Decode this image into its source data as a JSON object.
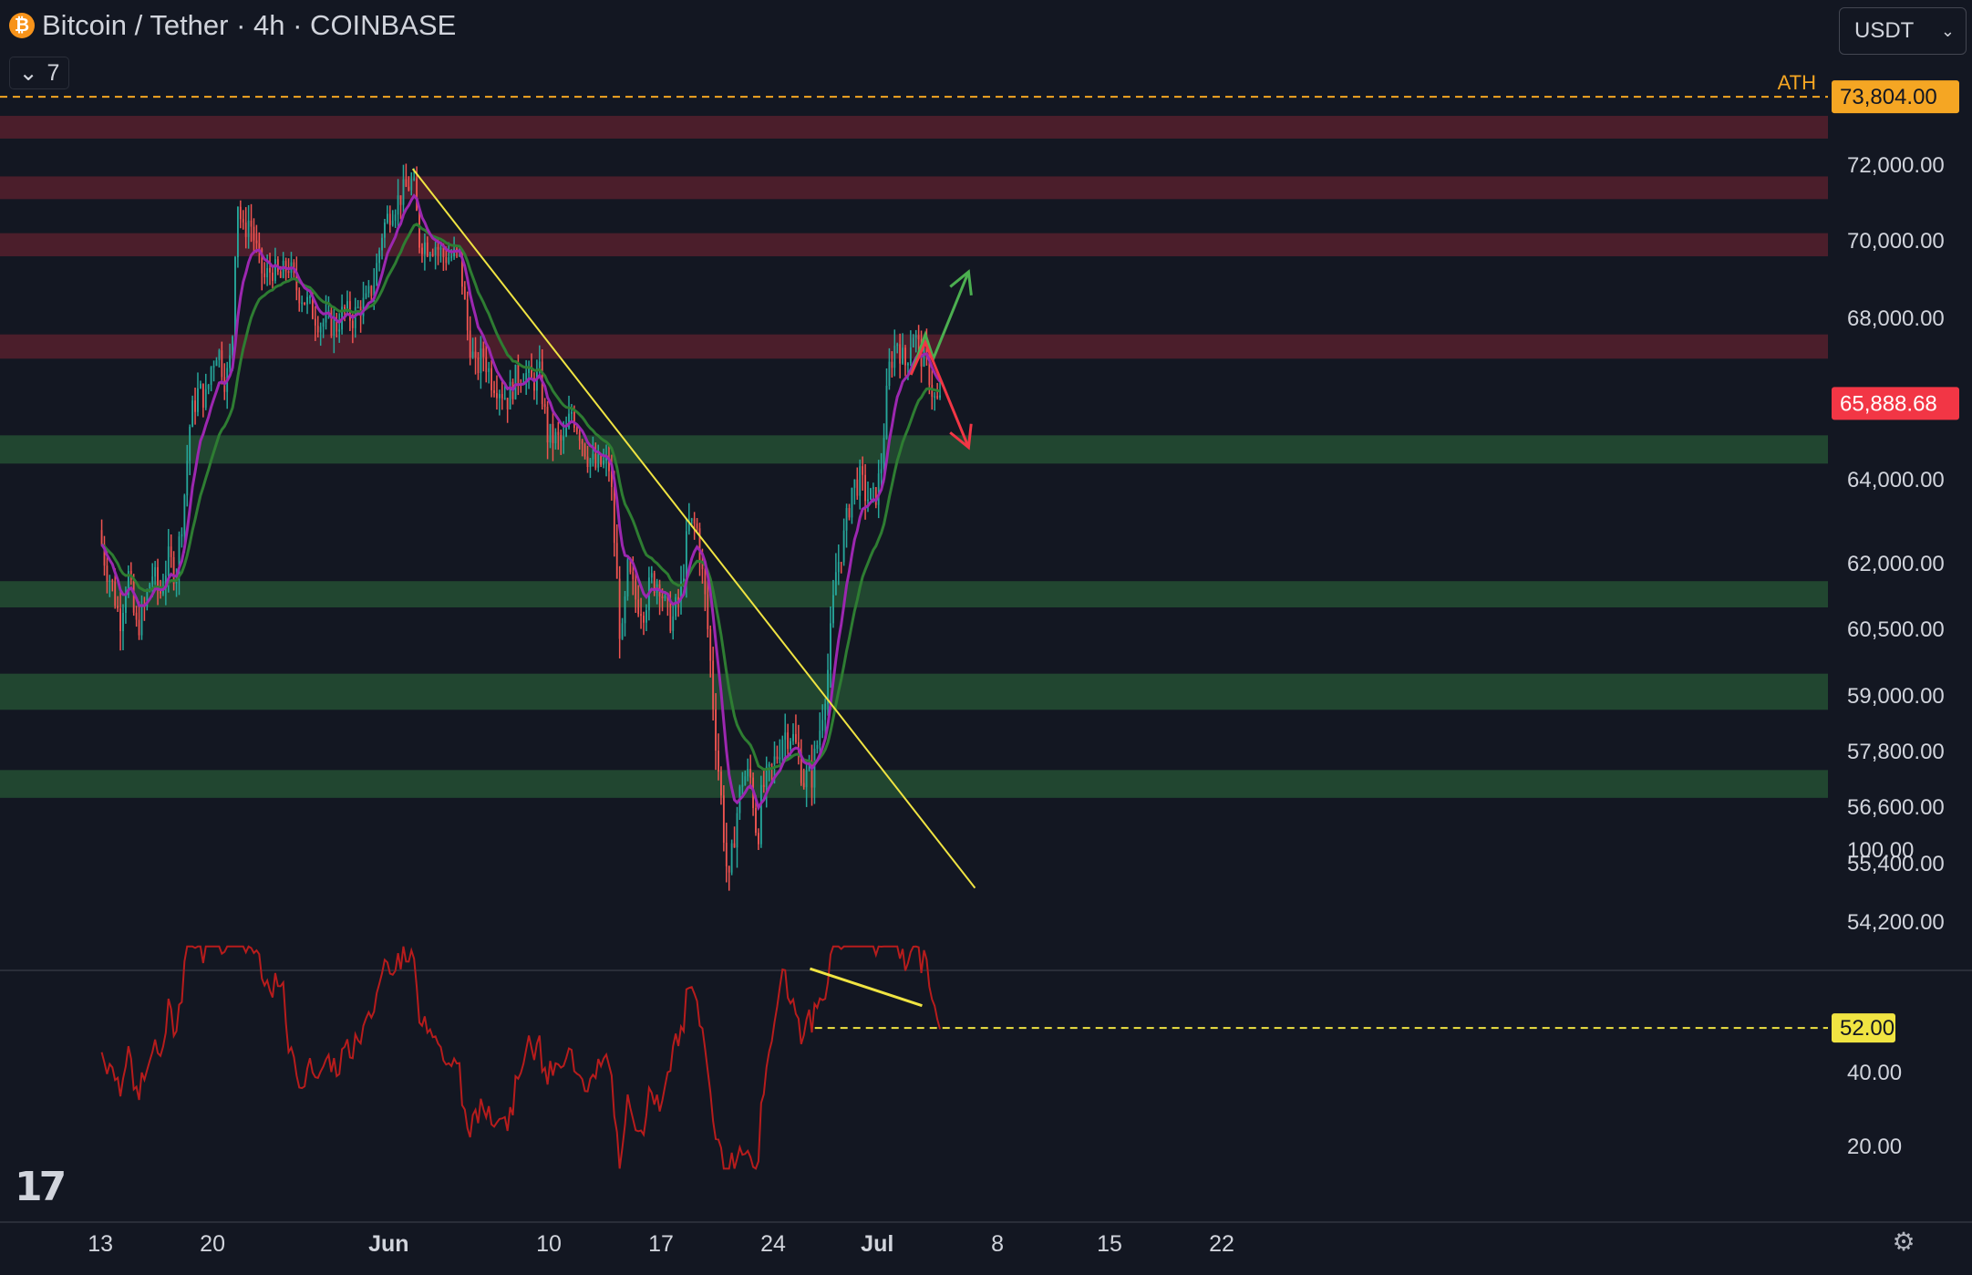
{
  "header": {
    "title": "Bitcoin / Tether · 4h · COINBASE",
    "icon": "bitcoin-icon",
    "icon_glyph": "₿",
    "indicators_count": "7"
  },
  "currency_select": {
    "value": "USDT"
  },
  "chart_data": {
    "type": "candlestick",
    "symbol": "BTCUSDT",
    "interval": "4h",
    "exchange": "COINBASE",
    "price_axis": {
      "ticks": [
        "72,000.00",
        "70,000.00",
        "68,000.00",
        "64,000.00",
        "62,000.00",
        "60,500.00",
        "59,000.00",
        "57,800.00",
        "56,600.00",
        "55,400.00",
        "54,200.00"
      ]
    },
    "time_axis": {
      "ticks": [
        "13",
        "20",
        "Jun",
        "10",
        "17",
        "24",
        "Jul",
        "8",
        "15",
        "22"
      ]
    },
    "price_path": [
      [
        0,
        62800
      ],
      [
        0.4,
        62000
      ],
      [
        0.9,
        61400
      ],
      [
        1.3,
        60700
      ],
      [
        1.8,
        61800
      ],
      [
        2.3,
        60500
      ],
      [
        2.8,
        60900
      ],
      [
        3.3,
        61800
      ],
      [
        3.8,
        61300
      ],
      [
        4.3,
        62100
      ],
      [
        4.8,
        61800
      ],
      [
        5.3,
        63500
      ],
      [
        5.7,
        65500
      ],
      [
        6.2,
        66200
      ],
      [
        6.7,
        66000
      ],
      [
        7.0,
        66800
      ],
      [
        7.4,
        67300
      ],
      [
        7.9,
        66400
      ],
      [
        8.3,
        67200
      ],
      [
        8.6,
        71200
      ],
      [
        9.0,
        70200
      ],
      [
        9.4,
        70600
      ],
      [
        9.9,
        69600
      ],
      [
        10.3,
        69000
      ],
      [
        10.8,
        69300
      ],
      [
        11.3,
        69000
      ],
      [
        11.8,
        69400
      ],
      [
        12.3,
        68800
      ],
      [
        12.8,
        68500
      ],
      [
        13.3,
        68200
      ],
      [
        13.8,
        67900
      ],
      [
        14.3,
        67900
      ],
      [
        14.8,
        67800
      ],
      [
        15.3,
        68200
      ],
      [
        15.8,
        68000
      ],
      [
        16.3,
        68300
      ],
      [
        16.7,
        68400
      ],
      [
        17.2,
        69000
      ],
      [
        17.7,
        70300
      ],
      [
        18.2,
        70800
      ],
      [
        18.7,
        71100
      ],
      [
        19.2,
        71400
      ],
      [
        19.6,
        71600
      ],
      [
        20.0,
        70000
      ],
      [
        20.5,
        69900
      ],
      [
        21.0,
        69900
      ],
      [
        21.5,
        69600
      ],
      [
        22.0,
        69600
      ],
      [
        22.5,
        69600
      ],
      [
        23.0,
        67700
      ],
      [
        23.5,
        66700
      ],
      [
        24.0,
        67100
      ],
      [
        24.5,
        66500
      ],
      [
        25.0,
        66300
      ],
      [
        25.5,
        66000
      ],
      [
        26.0,
        66500
      ],
      [
        26.5,
        66700
      ],
      [
        27.0,
        66400
      ],
      [
        27.5,
        66600
      ],
      [
        28.0,
        65100
      ],
      [
        28.5,
        65000
      ],
      [
        29.0,
        64900
      ],
      [
        29.5,
        65700
      ],
      [
        30.0,
        65200
      ],
      [
        30.5,
        64600
      ],
      [
        31.0,
        64300
      ],
      [
        31.4,
        64400
      ],
      [
        31.9,
        64300
      ],
      [
        32.3,
        61700
      ],
      [
        32.6,
        60000
      ],
      [
        33.0,
        61800
      ],
      [
        33.5,
        61200
      ],
      [
        34.0,
        61000
      ],
      [
        34.5,
        61600
      ],
      [
        35.0,
        61600
      ],
      [
        35.4,
        60900
      ],
      [
        35.8,
        60700
      ],
      [
        36.3,
        61300
      ],
      [
        36.8,
        62900
      ],
      [
        37.3,
        62900
      ],
      [
        37.8,
        61300
      ],
      [
        38.1,
        60100
      ],
      [
        38.4,
        58500
      ],
      [
        38.9,
        56500
      ],
      [
        39.3,
        54800
      ],
      [
        39.7,
        56200
      ],
      [
        40.2,
        57300
      ],
      [
        40.7,
        57200
      ],
      [
        41.1,
        55900
      ],
      [
        41.4,
        57000
      ],
      [
        41.8,
        57200
      ],
      [
        42.3,
        57700
      ],
      [
        42.7,
        58200
      ],
      [
        43.2,
        58200
      ],
      [
        43.6,
        57800
      ],
      [
        44.0,
        57200
      ],
      [
        44.5,
        57300
      ],
      [
        45.0,
        58300
      ],
      [
        45.5,
        59600
      ],
      [
        46.0,
        61800
      ],
      [
        46.5,
        62600
      ],
      [
        47.0,
        63800
      ],
      [
        47.5,
        64000
      ],
      [
        47.9,
        63600
      ],
      [
        48.4,
        63500
      ],
      [
        48.8,
        64200
      ],
      [
        49.3,
        66700
      ],
      [
        49.8,
        67500
      ],
      [
        50.3,
        66800
      ],
      [
        50.8,
        67700
      ],
      [
        51.3,
        67100
      ],
      [
        51.7,
        66900
      ],
      [
        52.1,
        66000
      ],
      [
        52.4,
        65900
      ]
    ],
    "ema_fast": {
      "color": "#9c27b0"
    },
    "ema_slow": {
      "color": "#2e7d32"
    },
    "resistance_zones": [
      [
        73300,
        72700
      ],
      [
        71700,
        71100
      ],
      [
        70200,
        69600
      ],
      [
        67600,
        67000
      ]
    ],
    "support_zones": [
      [
        65100,
        64400
      ],
      [
        61600,
        61000
      ],
      [
        59500,
        58700
      ],
      [
        57400,
        56800
      ]
    ],
    "trendline": {
      "from": [
        19.5,
        71900
      ],
      "to": [
        54.6,
        54900
      ],
      "color": "#f0e442"
    },
    "projection": {
      "bullish": [
        [
          50.6,
          66600
        ],
        [
          51.5,
          67600
        ],
        [
          52.0,
          67000
        ],
        [
          54.2,
          69200
        ]
      ],
      "bearish": [
        [
          50.6,
          66600
        ],
        [
          51.5,
          67400
        ],
        [
          54.2,
          64800
        ]
      ]
    },
    "ath": {
      "label": "ATH",
      "price": 73804,
      "price_label": "73,804.00"
    },
    "last_price": {
      "value": 65888.68,
      "label": "65,888.68"
    },
    "rsi": {
      "ticks": [
        "100.00",
        "40.00",
        "20.00"
      ],
      "level": {
        "value": 52,
        "label": "52.00"
      },
      "divergence_line": {
        "from": [
          44.3,
          68
        ],
        "to": [
          51.3,
          58
        ]
      },
      "color": "#b71c1c"
    }
  }
}
